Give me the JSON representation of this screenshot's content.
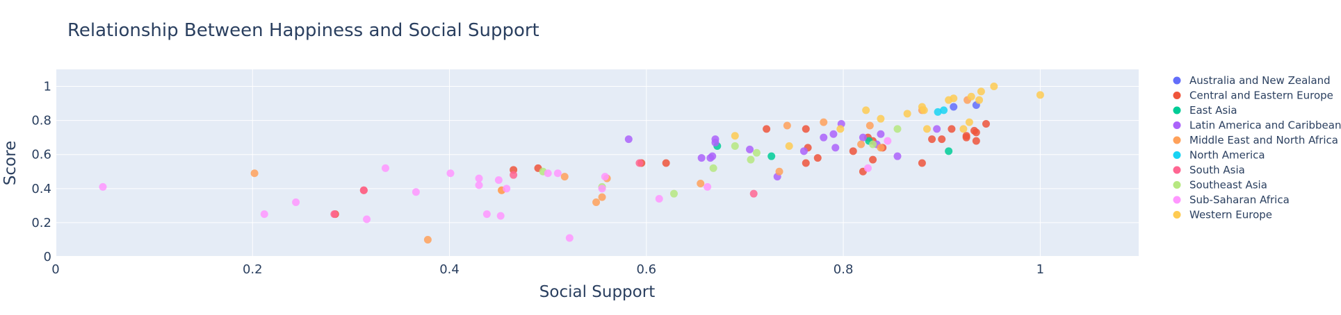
{
  "chart_data": {
    "type": "scatter",
    "title": "Relationship Between Happiness and Social Support",
    "xlabel": "Social Support",
    "ylabel": "Score",
    "xlim": [
      0,
      1.1
    ],
    "ylim": [
      0,
      1.1
    ],
    "xticks": [
      0,
      0.2,
      0.4,
      0.6,
      0.8,
      1
    ],
    "xtick_labels": [
      "0",
      "0.2",
      "0.4",
      "0.6",
      "0.8",
      "1"
    ],
    "yticks": [
      0,
      0.2,
      0.4,
      0.6,
      0.8,
      1
    ],
    "ytick_labels": [
      "0",
      "0.2",
      "0.4",
      "0.6",
      "0.8",
      "1"
    ],
    "grid": true,
    "legend_position": "right",
    "series": [
      {
        "name": "Australia and New Zealand",
        "color": "#636efa",
        "x": [
          0.912,
          0.935
        ],
        "y": [
          0.88,
          0.89
        ]
      },
      {
        "name": "Central and Eastern Europe",
        "color": "#ef553b",
        "x": [
          0.313,
          0.284,
          0.465,
          0.49,
          0.595,
          0.62,
          0.722,
          0.762,
          0.764,
          0.774,
          0.81,
          0.82,
          0.825,
          0.83,
          0.83,
          0.84,
          0.88,
          0.89,
          0.9,
          0.91,
          0.925,
          0.925,
          0.933,
          0.935,
          0.935,
          0.945,
          0.762
        ],
        "y": [
          0.39,
          0.25,
          0.51,
          0.52,
          0.55,
          0.55,
          0.75,
          0.75,
          0.64,
          0.58,
          0.62,
          0.5,
          0.7,
          0.68,
          0.57,
          0.64,
          0.55,
          0.69,
          0.69,
          0.75,
          0.71,
          0.7,
          0.74,
          0.73,
          0.68,
          0.78,
          0.55
        ]
      },
      {
        "name": "East Asia",
        "color": "#00cc96",
        "x": [
          0.672,
          0.727,
          0.826,
          0.907
        ],
        "y": [
          0.65,
          0.59,
          0.68,
          0.62
        ]
      },
      {
        "name": "Latin America and Caribbean",
        "color": "#ab63fa",
        "x": [
          0.582,
          0.656,
          0.665,
          0.667,
          0.67,
          0.67,
          0.705,
          0.733,
          0.76,
          0.78,
          0.79,
          0.792,
          0.798,
          0.82,
          0.834,
          0.838,
          0.855,
          0.895
        ],
        "y": [
          0.69,
          0.58,
          0.58,
          0.59,
          0.67,
          0.69,
          0.63,
          0.47,
          0.62,
          0.7,
          0.72,
          0.64,
          0.78,
          0.7,
          0.66,
          0.72,
          0.59,
          0.75
        ]
      },
      {
        "name": "Middle East and North Africa",
        "color": "#ffa15a",
        "x": [
          0.202,
          0.378,
          0.453,
          0.517,
          0.549,
          0.555,
          0.56,
          0.655,
          0.735,
          0.743,
          0.78,
          0.818,
          0.827,
          0.838,
          0.926,
          0.88,
          0.453
        ],
        "y": [
          0.49,
          0.1,
          0.39,
          0.47,
          0.32,
          0.35,
          0.46,
          0.43,
          0.5,
          0.77,
          0.79,
          0.66,
          0.77,
          0.64,
          0.92,
          0.86,
          0.39
        ]
      },
      {
        "name": "North America",
        "color": "#19d3f3",
        "x": [
          0.896,
          0.902
        ],
        "y": [
          0.85,
          0.86
        ]
      },
      {
        "name": "South Asia",
        "color": "#ff6692",
        "x": [
          0.283,
          0.313,
          0.465,
          0.593,
          0.709
        ],
        "y": [
          0.25,
          0.39,
          0.48,
          0.55,
          0.37
        ]
      },
      {
        "name": "Southeast Asia",
        "color": "#b6e880",
        "x": [
          0.495,
          0.555,
          0.628,
          0.668,
          0.69,
          0.706,
          0.712,
          0.855,
          0.83
        ],
        "y": [
          0.5,
          0.41,
          0.37,
          0.52,
          0.65,
          0.57,
          0.61,
          0.75,
          0.66
        ]
      },
      {
        "name": "Sub-Saharan Africa",
        "color": "#ff97ff",
        "x": [
          0.048,
          0.212,
          0.244,
          0.316,
          0.335,
          0.366,
          0.401,
          0.43,
          0.43,
          0.438,
          0.45,
          0.452,
          0.458,
          0.5,
          0.51,
          0.522,
          0.555,
          0.558,
          0.613,
          0.662,
          0.825,
          0.845
        ],
        "y": [
          0.41,
          0.25,
          0.32,
          0.22,
          0.52,
          0.38,
          0.49,
          0.42,
          0.46,
          0.25,
          0.45,
          0.24,
          0.4,
          0.49,
          0.49,
          0.11,
          0.4,
          0.47,
          0.34,
          0.41,
          0.52,
          0.68
        ]
      },
      {
        "name": "Western Europe",
        "color": "#fecb52",
        "x": [
          0.69,
          0.745,
          0.797,
          0.823,
          0.838,
          0.865,
          0.88,
          0.882,
          0.885,
          0.907,
          0.912,
          0.922,
          0.928,
          0.93,
          0.938,
          0.94,
          0.953,
          1.0
        ],
        "y": [
          0.71,
          0.65,
          0.75,
          0.86,
          0.81,
          0.84,
          0.88,
          0.86,
          0.75,
          0.92,
          0.93,
          0.75,
          0.79,
          0.94,
          0.92,
          0.97,
          1.0,
          0.95
        ]
      }
    ]
  }
}
